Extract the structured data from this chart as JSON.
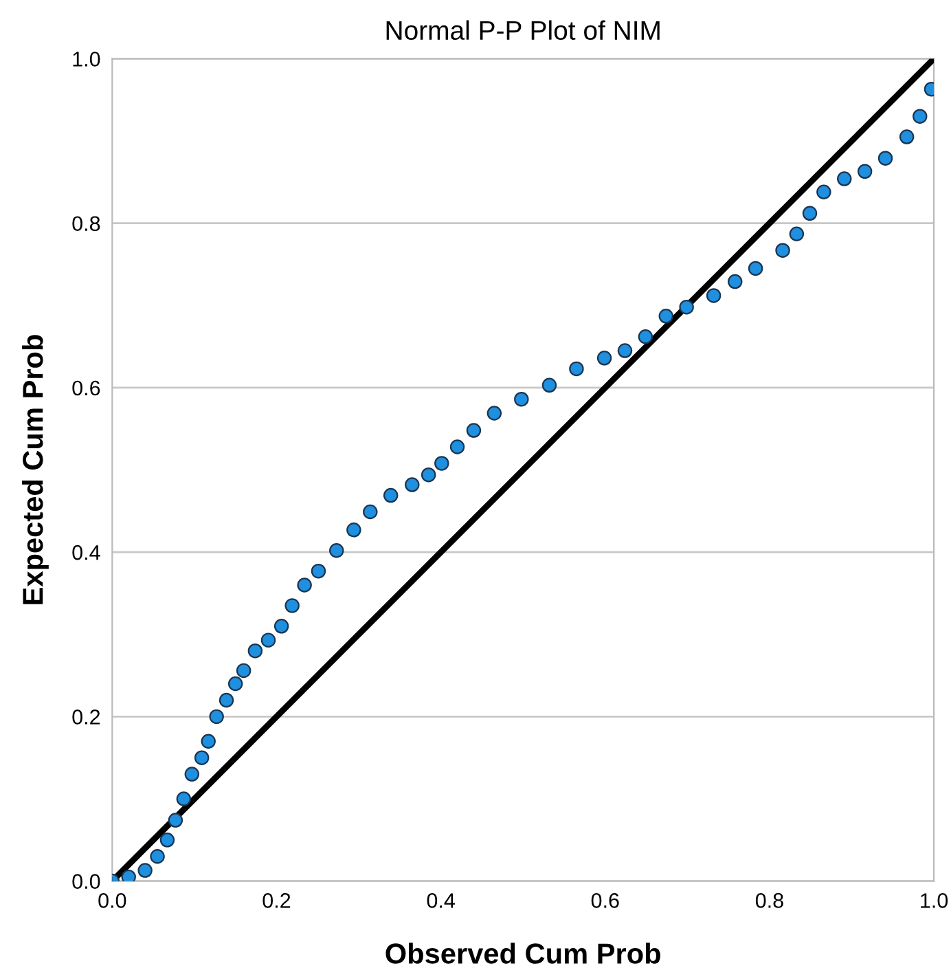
{
  "chart_data": {
    "type": "scatter",
    "title": "Normal P-P Plot of NIM",
    "xlabel": "Observed Cum Prob",
    "ylabel": "Expected Cum Prob",
    "xlim": [
      0,
      1
    ],
    "ylim": [
      0,
      1
    ],
    "xticks": [
      {
        "value": 0,
        "label": "0.0"
      },
      0.2,
      0.4,
      0.6,
      0.8,
      {
        "value": 1,
        "label": "1.0"
      }
    ],
    "yticks": [
      {
        "value": 0,
        "label": "0.0"
      },
      0.2,
      0.4,
      0.6,
      0.8,
      {
        "value": 1,
        "label": "1.0"
      }
    ],
    "grid": "y",
    "marker": "circle",
    "legend": false,
    "series": [
      {
        "color": "#1f8fe0",
        "x": [
          0.0,
          0.02,
          0.04,
          0.055,
          0.067,
          0.077,
          0.087,
          0.097,
          0.109,
          0.117,
          0.127,
          0.139,
          0.15,
          0.16,
          0.174,
          0.19,
          0.206,
          0.219,
          0.234,
          0.251,
          0.273,
          0.294,
          0.314,
          0.339,
          0.365,
          0.385,
          0.401,
          0.42,
          0.44,
          0.465,
          0.498,
          0.532,
          0.565,
          0.599,
          0.624,
          0.649,
          0.674,
          0.699,
          0.732,
          0.758,
          0.783,
          0.816,
          0.833,
          0.849,
          0.866,
          0.891,
          0.916,
          0.941,
          0.967,
          0.983,
          0.997
        ],
        "values": [
          0.0,
          0.005,
          0.013,
          0.03,
          0.05,
          0.074,
          0.1,
          0.13,
          0.15,
          0.17,
          0.2,
          0.22,
          0.24,
          0.256,
          0.28,
          0.293,
          0.31,
          0.335,
          0.36,
          0.377,
          0.402,
          0.427,
          0.449,
          0.469,
          0.482,
          0.494,
          0.508,
          0.528,
          0.548,
          0.569,
          0.586,
          0.603,
          0.623,
          0.636,
          0.645,
          0.662,
          0.687,
          0.698,
          0.712,
          0.729,
          0.745,
          0.767,
          0.787,
          0.812,
          0.838,
          0.854,
          0.863,
          0.879,
          0.905,
          0.93,
          0.963
        ]
      },
      {
        "type": "line",
        "color": "#000000",
        "x": [
          0,
          1
        ],
        "values": [
          0,
          1
        ],
        "marker": "none",
        "line_style": "solid"
      }
    ]
  }
}
